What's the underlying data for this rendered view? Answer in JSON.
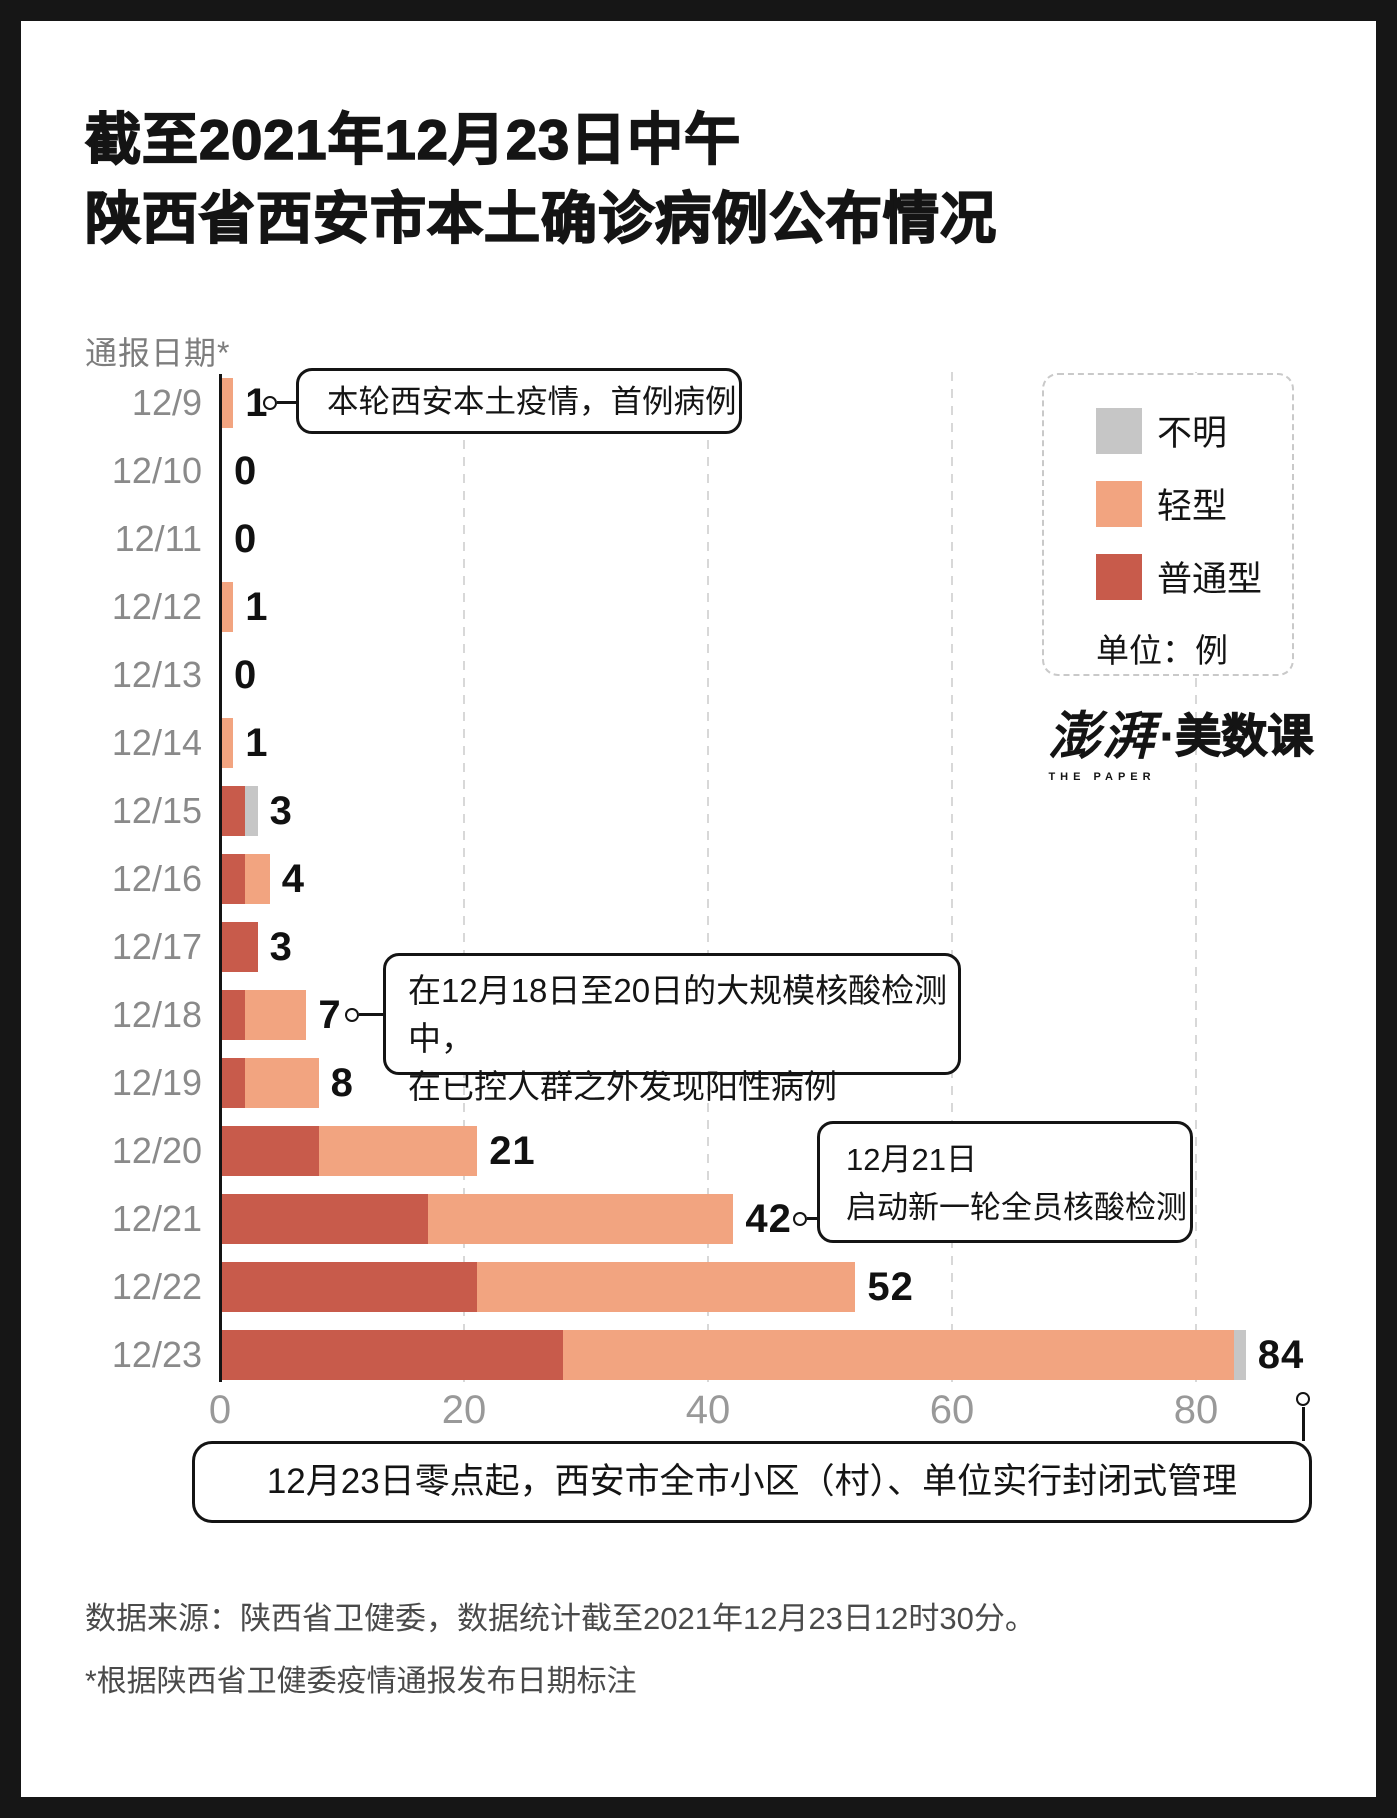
{
  "title": {
    "line1": "截至2021年12月23日中午",
    "line2": "陕西省西安市本土确诊病例公布情况"
  },
  "axis_header": "通报日期*",
  "legend": {
    "items": [
      {
        "label": "不明",
        "color": "#c6c6c6"
      },
      {
        "label": "轻型",
        "color": "#f2a480"
      },
      {
        "label": "普通型",
        "color": "#c85b4b"
      }
    ],
    "unit": "单位：例"
  },
  "logo": {
    "cn": "澎湃",
    "en": "THE PAPER",
    "suffix": "·美数课"
  },
  "chart_data": {
    "type": "bar",
    "orientation": "horizontal",
    "categories": [
      "12/9",
      "12/10",
      "12/11",
      "12/12",
      "12/13",
      "12/14",
      "12/15",
      "12/16",
      "12/17",
      "12/18",
      "12/19",
      "12/20",
      "12/21",
      "12/22",
      "12/23"
    ],
    "series": [
      {
        "name": "普通型",
        "color": "#c85b4b",
        "values": [
          0,
          0,
          0,
          0,
          0,
          0,
          2,
          2,
          3,
          2,
          2,
          8,
          17,
          21,
          28
        ]
      },
      {
        "name": "轻型",
        "color": "#f2a480",
        "values": [
          1,
          0,
          0,
          1,
          0,
          1,
          0,
          2,
          0,
          5,
          6,
          13,
          25,
          31,
          55
        ]
      },
      {
        "name": "不明",
        "color": "#c6c6c6",
        "values": [
          0,
          0,
          0,
          0,
          0,
          0,
          1,
          0,
          0,
          0,
          0,
          0,
          0,
          0,
          1
        ]
      }
    ],
    "totals": [
      1,
      0,
      0,
      1,
      0,
      1,
      3,
      4,
      3,
      7,
      8,
      21,
      42,
      52,
      84
    ],
    "xticks": [
      0,
      20,
      40,
      60,
      80
    ],
    "xlim": [
      0,
      88
    ],
    "grid": "vertical-dashed",
    "legend_position": "top-right",
    "annotations": [
      {
        "target": "12/9",
        "lines": [
          "本轮西安本土疫情，首例病例"
        ]
      },
      {
        "target": "12/18",
        "lines": [
          "在12月18日至20日的大规模核酸检测中，",
          "在已控人群之外发现阳性病例"
        ]
      },
      {
        "target": "12/21",
        "lines": [
          "12月21日",
          "启动新一轮全员核酸检测"
        ]
      },
      {
        "target": "12/23",
        "lines": [
          "12月23日零点起，西安市全市小区（村）、单位实行封闭式管理"
        ]
      }
    ]
  },
  "source": {
    "line1": "数据来源：陕西省卫健委，数据统计截至2021年12月23日12时30分。",
    "footnote": "*根据陕西省卫健委疫情通报发布日期标注"
  }
}
